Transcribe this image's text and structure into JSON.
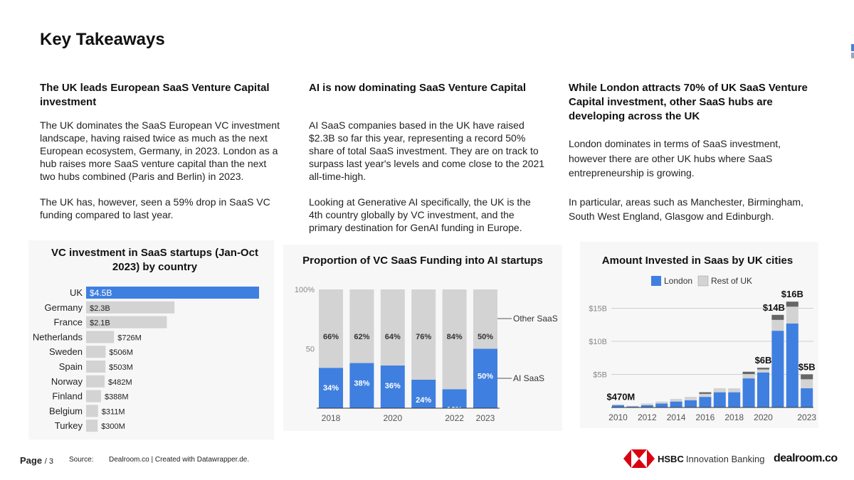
{
  "page": {
    "title": "Key Takeaways",
    "page_label": "Page",
    "page_number": "/ 3",
    "source_label": "Source:",
    "source_text": "Dealroom.co | Created with Datawrapper.de.",
    "hsbc_logo_text": "HSBC",
    "hsbc_logo_subtext": "Innovation Banking",
    "dealroom_logo_text": "dealroom.co"
  },
  "columns": [
    {
      "heading": "The UK leads European SaaS Venture Capital investment",
      "paragraphs": [
        "The UK dominates the SaaS European VC investment landscape, having raised twice as much as the next European ecosystem, Germany, in 2023. London as a hub raises more SaaS venture capital than the next two hubs combined (Paris and Berlin) in 2023.",
        "The UK has, however, seen a 59% drop in SaaS VC funding compared to last year."
      ]
    },
    {
      "heading": "AI is now dominating SaaS Venture Capital",
      "paragraphs": [
        "AI SaaS companies based in the UK have raised $2.3B so far this year, representing a record 50% share of total SaaS investment. They are on track to surpass last year's levels and come close to the 2021 all-time-high.",
        "Looking at Generative AI specifically, the UK is the 4th country globally by VC investment, and the primary destination for GenAI funding in Europe."
      ]
    },
    {
      "heading": "While London attracts 70% of UK SaaS Venture Capital investment, other SaaS hubs are developing across the UK",
      "paragraphs": [
        "London dominates in terms of SaaS investment, however there are other UK hubs where SaaS entrepreneurship is growing.",
        "In particular, areas such as Manchester, Birmingham, South West England, Glasgow and Edinburgh."
      ]
    }
  ],
  "chart_data": [
    {
      "type": "bar",
      "orientation": "horizontal",
      "title": "VC investment in SaaS startups (Jan-Oct 2023) by country",
      "categories": [
        "UK",
        "Germany",
        "France",
        "Netherlands",
        "Sweden",
        "Spain",
        "Norway",
        "Finland",
        "Belgium",
        "Turkey"
      ],
      "values": [
        4500,
        2300,
        2100,
        726,
        506,
        503,
        482,
        388,
        311,
        300
      ],
      "unit": "$M",
      "labels": [
        "$4.5B",
        "$2.3B",
        "$2.1B",
        "$726M",
        "$506M",
        "$503M",
        "$482M",
        "$388M",
        "$311M",
        "$300M"
      ],
      "highlight_color": "#3f7fe0",
      "bar_color": "#d3d3d3"
    },
    {
      "type": "bar",
      "stacked": true,
      "title": "Proportion of VC SaaS Funding into AI startups",
      "categories": [
        "2018",
        "2019",
        "2020",
        "2021",
        "2022",
        "2023"
      ],
      "x_tick_labels": [
        "2018",
        "",
        "2020",
        "",
        "2022",
        "2023"
      ],
      "y_ticks": [
        "100%",
        "50"
      ],
      "ylim": [
        0,
        100
      ],
      "series": [
        {
          "name": "AI SaaS",
          "values": [
            34,
            38,
            36,
            24,
            16,
            50
          ],
          "labels": [
            "34%",
            "38%",
            "36%",
            "24%",
            "16%",
            "50%"
          ],
          "color": "#3f7fe0"
        },
        {
          "name": "Other SaaS",
          "values": [
            66,
            62,
            64,
            76,
            84,
            50
          ],
          "labels": [
            "66%",
            "62%",
            "64%",
            "76%",
            "84%",
            "50%"
          ],
          "color": "#d3d3d3"
        }
      ]
    },
    {
      "type": "bar",
      "stacked": true,
      "title": "Amount Invested in Saas by UK cities",
      "categories": [
        "2010",
        "2011",
        "2012",
        "2013",
        "2014",
        "2015",
        "2016",
        "2017",
        "2018",
        "2019",
        "2020",
        "2021",
        "2022",
        "2023"
      ],
      "x_tick_labels": [
        "2010",
        "2012",
        "2014",
        "2016",
        "2018",
        "2020",
        "2023"
      ],
      "y_ticks": [
        "$5B",
        "$10B",
        "$15B"
      ],
      "ylim": [
        0,
        18
      ],
      "unit": "$B",
      "legend": [
        "London",
        "Rest of UK"
      ],
      "series": [
        {
          "name": "London",
          "values": [
            0.35,
            0.15,
            0.35,
            0.6,
            0.9,
            1.1,
            1.6,
            2.3,
            2.3,
            4.4,
            5.3,
            11.6,
            12.7,
            2.9
          ],
          "color": "#3f7fe0"
        },
        {
          "name": "Rest of UK",
          "values": [
            0.12,
            0.1,
            0.25,
            0.3,
            0.4,
            0.5,
            0.7,
            0.6,
            0.6,
            1.0,
            0.7,
            2.4,
            3.3,
            2.1
          ],
          "color": "#d3d3d3"
        }
      ],
      "annotations": [
        {
          "category": "2010",
          "label": "$470M"
        },
        {
          "category": "2020",
          "label": "$6B"
        },
        {
          "category": "2021",
          "label": "$14B"
        },
        {
          "category": "2022",
          "label": "$16B"
        },
        {
          "category": "2023",
          "label": "$5B"
        }
      ]
    }
  ]
}
